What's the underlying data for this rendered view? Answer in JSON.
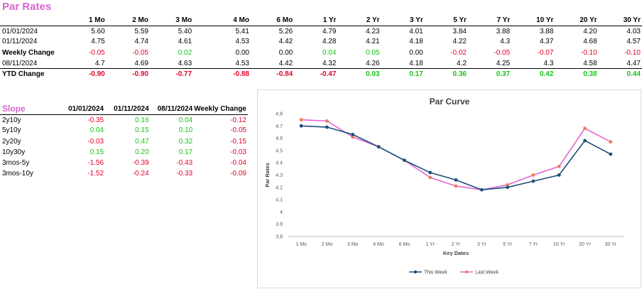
{
  "title": "Par Rates",
  "rates": {
    "columns": [
      "1 Mo",
      "2 Mo",
      "3 Mo",
      "4 Mo",
      "6 Mo",
      "1 Yr",
      "2 Yr",
      "3 Yr",
      "5 Yr",
      "7 Yr",
      "10 Yr",
      "20 Yr",
      "30 Yr"
    ],
    "rows": [
      {
        "label": "01/01/2024",
        "values": [
          "5.60",
          "5.59",
          "5.40",
          "5.41",
          "5.26",
          "4.79",
          "4.23",
          "4.01",
          "3.84",
          "3.88",
          "3.88",
          "4.20",
          "4.03"
        ],
        "bold": false
      },
      {
        "label": "01/11/2024",
        "values": [
          "4.75",
          "4.74",
          "4.61",
          "4.53",
          "4.42",
          "4.28",
          "4.21",
          "4.18",
          "4.22",
          "4.3",
          "4.37",
          "4.68",
          "4.57"
        ],
        "bold": false
      },
      {
        "label": "Weekly Change",
        "values": [
          "-0.05",
          "-0.05",
          "0.02",
          "0.00",
          "0.00",
          "0.04",
          "0.05",
          "0.00",
          "-0.02",
          "-0.05",
          "-0.07",
          "-0.10",
          "-0.10"
        ],
        "bold": true,
        "colored": true
      },
      {
        "label": "08/11/2024",
        "values": [
          "4.7",
          "4.69",
          "4.63",
          "4.53",
          "4.42",
          "4.32",
          "4.26",
          "4.18",
          "4.2",
          "4.25",
          "4.3",
          "4.58",
          "4.47"
        ],
        "bold": false
      },
      {
        "label": "YTD Change",
        "values": [
          "-0.90",
          "-0.90",
          "-0.77",
          "-0.88",
          "-0.84",
          "-0.47",
          "0.03",
          "0.17",
          "0.36",
          "0.37",
          "0.42",
          "0.38",
          "0.44"
        ],
        "bold": true,
        "colored": true,
        "ytd": true
      }
    ]
  },
  "slope": {
    "title": "Slope",
    "columns": [
      "01/01/2024",
      "01/11/2024",
      "08/11/2024",
      "Weekly Change"
    ],
    "rows": [
      {
        "label": "2y10y",
        "values": [
          "-0.35",
          "0.16",
          "0.04",
          "-0.12"
        ]
      },
      {
        "label": "5y10y",
        "values": [
          "0.04",
          "0.15",
          "0.10",
          "-0.05"
        ]
      },
      {
        "label": "2y20y",
        "values": [
          "-0.03",
          "0.47",
          "0.32",
          "-0.15"
        ]
      },
      {
        "label": "10y30y",
        "values": [
          "0.15",
          "0.20",
          "0.17",
          "-0.03"
        ]
      },
      {
        "label": "3mos-5y",
        "values": [
          "-1.56",
          "-0.39",
          "-0.43",
          "-0.04"
        ]
      },
      {
        "label": "3mos-10y",
        "values": [
          "-1.52",
          "-0.24",
          "-0.33",
          "-0.09"
        ]
      }
    ]
  },
  "colors": {
    "negative": "#e8002a",
    "positive": "#17c617",
    "accent": "#d766d0",
    "this_week": "#1f4e79",
    "last_week": "#e066d6"
  },
  "chart_data": {
    "type": "line",
    "title": "Par Curve",
    "xlabel": "Key Dates",
    "ylabel": "Par Rates",
    "categories": [
      "1 Mo",
      "2 Mo",
      "3 Mo",
      "4 Mo",
      "6 Mo",
      "1 Yr",
      "2 Yr",
      "3 Yr",
      "5 Yr",
      "7 Yr",
      "10 Yr",
      "20 Yr",
      "30 Yr"
    ],
    "ylim": [
      3.8,
      4.8
    ],
    "yticks": [
      "3.8",
      "3.9",
      "4",
      "4.1",
      "4.2",
      "4.3",
      "4.4",
      "4.5",
      "4.6",
      "4.7",
      "4.8"
    ],
    "legend_position": "bottom",
    "series": [
      {
        "name": "This Week",
        "values": [
          4.7,
          4.69,
          4.63,
          4.53,
          4.42,
          4.32,
          4.26,
          4.18,
          4.2,
          4.25,
          4.3,
          4.58,
          4.47
        ]
      },
      {
        "name": "Last Week",
        "values": [
          4.75,
          4.74,
          4.61,
          4.53,
          4.42,
          4.28,
          4.21,
          4.18,
          4.22,
          4.3,
          4.37,
          4.68,
          4.57
        ]
      }
    ]
  }
}
